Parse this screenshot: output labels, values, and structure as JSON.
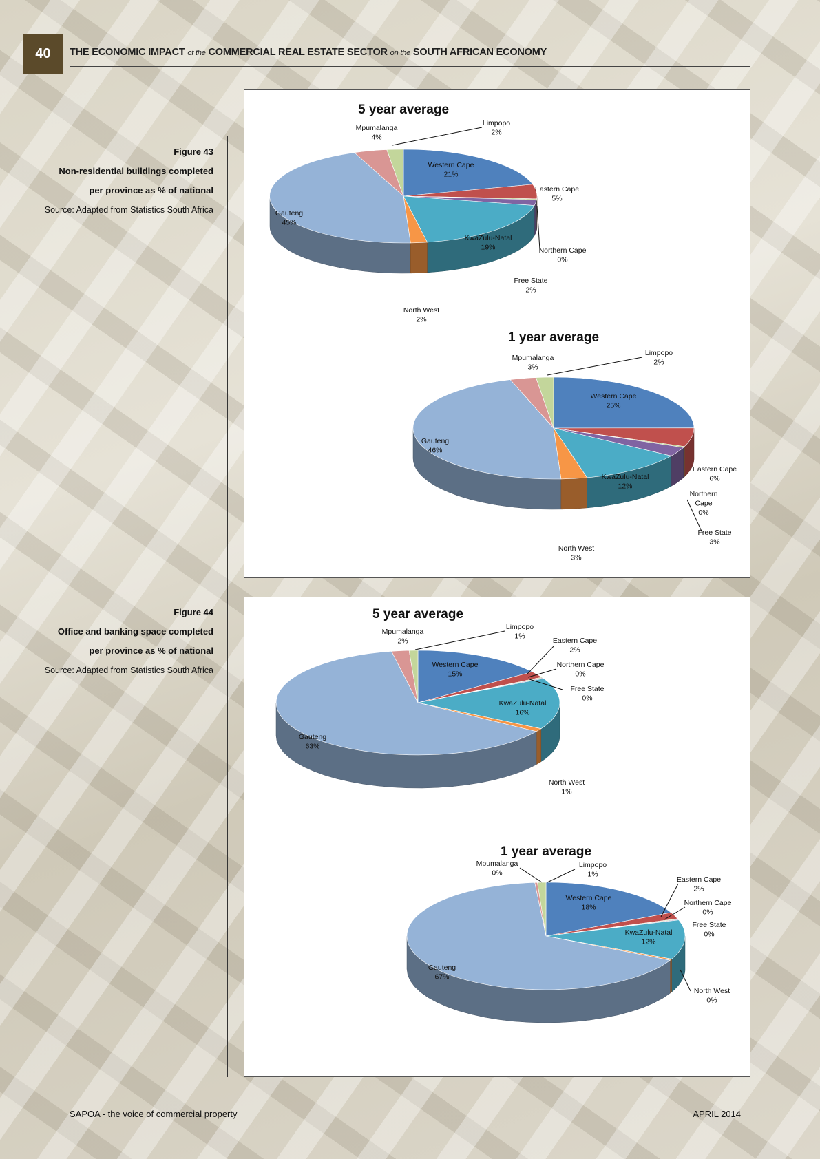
{
  "header": {
    "page_number": "40",
    "title_part1": "THE ECONOMIC IMPACT ",
    "title_of_the": "of the",
    "title_part2": " COMMERCIAL REAL ESTATE SECTOR ",
    "title_on_the": "on the",
    "title_part3": " SOUTH AFRICAN ECONOMY"
  },
  "figure43": {
    "label": "Figure 43",
    "title_line1": "Non-residential buildings completed",
    "title_line2": "per province as % of national",
    "source": "Source: Adapted from Statistics South Africa"
  },
  "figure44": {
    "label": "Figure 44",
    "title_line1": "Office and banking space completed",
    "title_line2": "per province as % of national",
    "source": "Source: Adapted from Statistics South Africa"
  },
  "footer": {
    "left": "SAPOA - the voice of commercial property",
    "right": "APRIL 2014"
  },
  "colors": {
    "Western Cape": "#4f81bd",
    "Eastern Cape": "#c0504d",
    "Northern Cape": "#9bbb59",
    "Free State": "#8064a2",
    "KwaZulu-Natal": "#4bacc6",
    "North West": "#f79646",
    "Gauteng": "#95b3d7",
    "Mpumalanga": "#d99694",
    "Limpopo": "#c3d69b"
  },
  "chart_data": [
    {
      "type": "pie",
      "figure": "Figure 43",
      "title": "5 year average",
      "slices": [
        {
          "name": "Western Cape",
          "value": 21,
          "label": "21%"
        },
        {
          "name": "Eastern Cape",
          "value": 5,
          "label": "5%"
        },
        {
          "name": "Northern Cape",
          "value": 0.3,
          "label": "0%"
        },
        {
          "name": "Free State",
          "value": 2,
          "label": "2%"
        },
        {
          "name": "KwaZulu-Natal",
          "value": 19,
          "label": "19%"
        },
        {
          "name": "North West",
          "value": 2,
          "label": "2%"
        },
        {
          "name": "Gauteng",
          "value": 45,
          "label": "45%"
        },
        {
          "name": "Mpumalanga",
          "value": 4,
          "label": "4%"
        },
        {
          "name": "Limpopo",
          "value": 2,
          "label": "2%"
        }
      ]
    },
    {
      "type": "pie",
      "figure": "Figure 43",
      "title": "1 year average",
      "slices": [
        {
          "name": "Western Cape",
          "value": 25,
          "label": "25%"
        },
        {
          "name": "Eastern Cape",
          "value": 6,
          "label": "6%"
        },
        {
          "name": "Northern Cape",
          "value": 0.3,
          "label": "0%"
        },
        {
          "name": "Free State",
          "value": 3,
          "label": "3%"
        },
        {
          "name": "KwaZulu-Natal",
          "value": 12,
          "label": "12%"
        },
        {
          "name": "North West",
          "value": 3,
          "label": "3%"
        },
        {
          "name": "Gauteng",
          "value": 46,
          "label": "46%"
        },
        {
          "name": "Mpumalanga",
          "value": 3,
          "label": "3%"
        },
        {
          "name": "Limpopo",
          "value": 2,
          "label": "2%"
        }
      ]
    },
    {
      "type": "pie",
      "figure": "Figure 44",
      "title": "5 year average",
      "slices": [
        {
          "name": "Western Cape",
          "value": 15,
          "label": "15%"
        },
        {
          "name": "Eastern Cape",
          "value": 2,
          "label": "2%"
        },
        {
          "name": "Northern Cape",
          "value": 0.2,
          "label": "0%"
        },
        {
          "name": "Free State",
          "value": 0.2,
          "label": "0%"
        },
        {
          "name": "KwaZulu-Natal",
          "value": 16,
          "label": "16%"
        },
        {
          "name": "North West",
          "value": 1,
          "label": "1%"
        },
        {
          "name": "Gauteng",
          "value": 63,
          "label": "63%"
        },
        {
          "name": "Mpumalanga",
          "value": 2,
          "label": "2%"
        },
        {
          "name": "Limpopo",
          "value": 1,
          "label": "1%"
        }
      ]
    },
    {
      "type": "pie",
      "figure": "Figure 44",
      "title": "1 year average",
      "slices": [
        {
          "name": "Western Cape",
          "value": 18,
          "label": "18%"
        },
        {
          "name": "Eastern Cape",
          "value": 2,
          "label": "2%"
        },
        {
          "name": "Northern Cape",
          "value": 0.2,
          "label": "0%"
        },
        {
          "name": "Free State",
          "value": 0.2,
          "label": "0%"
        },
        {
          "name": "KwaZulu-Natal",
          "value": 12,
          "label": "12%"
        },
        {
          "name": "North West",
          "value": 0.4,
          "label": "0%"
        },
        {
          "name": "Gauteng",
          "value": 67,
          "label": "67%"
        },
        {
          "name": "Mpumalanga",
          "value": 0.3,
          "label": "0%"
        },
        {
          "name": "Limpopo",
          "value": 1,
          "label": "1%"
        }
      ]
    }
  ]
}
